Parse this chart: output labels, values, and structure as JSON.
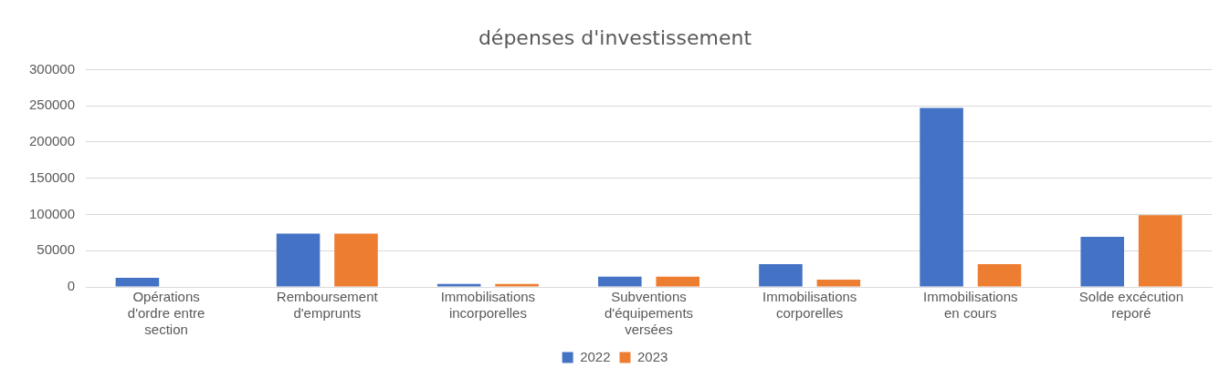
{
  "chart_data": {
    "type": "bar",
    "title": "dépenses d'investissement",
    "categories": [
      "Opérations d'ordre entre section",
      "Remboursement d'emprunts",
      "Immobilisations incorporelles",
      "Subventions d'équipements versées",
      "Immobilisations corporelles",
      "Immobilisations en cours",
      "Solde excécution reporé"
    ],
    "series": [
      {
        "name": "2022",
        "color": "#4472c4",
        "values": [
          12500,
          73500,
          4000,
          14000,
          31500,
          247000,
          69000
        ]
      },
      {
        "name": "2023",
        "color": "#ed7d31",
        "values": [
          0,
          73500,
          4000,
          14000,
          10000,
          31500,
          99000
        ]
      }
    ],
    "ylim": [
      0,
      300000
    ],
    "yticks": [
      0,
      50000,
      100000,
      150000,
      200000,
      250000,
      300000
    ],
    "grid": "y",
    "legend": "bottom"
  }
}
